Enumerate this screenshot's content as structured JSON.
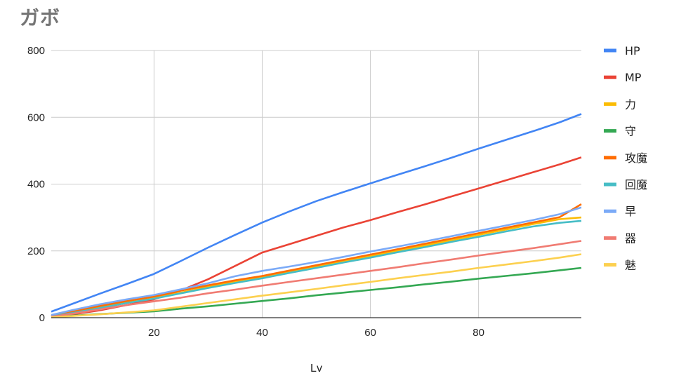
{
  "chart_data": {
    "type": "line",
    "title": "ガボ",
    "xlabel": "Lv",
    "ylabel": "",
    "xlim": [
      1,
      99
    ],
    "ylim": [
      0,
      800
    ],
    "x_ticks": [
      20,
      40,
      60,
      80
    ],
    "y_ticks": [
      0,
      200,
      400,
      600,
      800
    ],
    "grid": true,
    "legend": "right",
    "x": [
      1,
      5,
      10,
      15,
      20,
      25,
      30,
      35,
      40,
      45,
      50,
      55,
      60,
      65,
      70,
      75,
      80,
      85,
      90,
      95,
      99
    ],
    "series": [
      {
        "name": "HP",
        "color": "#4285F4",
        "values": [
          18,
          42,
          72,
          101,
          131,
          170,
          210,
          248,
          285,
          318,
          349,
          376,
          402,
          428,
          453,
          479,
          506,
          532,
          558,
          585,
          610
        ]
      },
      {
        "name": "MP",
        "color": "#EA4335",
        "values": [
          3,
          10,
          22,
          38,
          55,
          82,
          115,
          155,
          195,
          220,
          245,
          270,
          292,
          316,
          339,
          363,
          387,
          411,
          435,
          459,
          480
        ]
      },
      {
        "name": "力",
        "color": "#FBBC04",
        "values": [
          5,
          17,
          32,
          45,
          58,
          75,
          92,
          108,
          120,
          137,
          153,
          169,
          185,
          200,
          216,
          232,
          248,
          264,
          280,
          295,
          300
        ]
      },
      {
        "name": "守",
        "color": "#34A853",
        "values": [
          2,
          6,
          11,
          15,
          19,
          27,
          34,
          42,
          50,
          58,
          67,
          75,
          83,
          91,
          100,
          108,
          117,
          125,
          133,
          142,
          149
        ]
      },
      {
        "name": "攻魔",
        "color": "#FF6D01",
        "values": [
          5,
          19,
          35,
          50,
          63,
          81,
          97,
          112,
          125,
          141,
          157,
          173,
          189,
          205,
          221,
          237,
          253,
          269,
          285,
          301,
          340
        ]
      },
      {
        "name": "回魔",
        "color": "#46BDC6",
        "values": [
          4,
          14,
          29,
          44,
          57,
          73,
          89,
          104,
          118,
          134,
          149,
          165,
          180,
          196,
          211,
          227,
          242,
          258,
          273,
          284,
          290
        ]
      },
      {
        "name": "早",
        "color": "#7BAAF7",
        "values": [
          8,
          23,
          40,
          55,
          68,
          85,
          103,
          124,
          140,
          153,
          167,
          182,
          198,
          213,
          228,
          244,
          260,
          276,
          292,
          310,
          330
        ]
      },
      {
        "name": "器",
        "color": "#F07B72",
        "values": [
          3,
          12,
          25,
          38,
          49,
          60,
          73,
          84,
          96,
          107,
          118,
          129,
          140,
          151,
          163,
          174,
          186,
          197,
          208,
          220,
          230
        ]
      },
      {
        "name": "魅",
        "color": "#FCD04F",
        "values": [
          1,
          5,
          10,
          16,
          22,
          33,
          44,
          55,
          66,
          76,
          86,
          97,
          107,
          118,
          128,
          138,
          149,
          159,
          169,
          180,
          190
        ]
      }
    ]
  }
}
